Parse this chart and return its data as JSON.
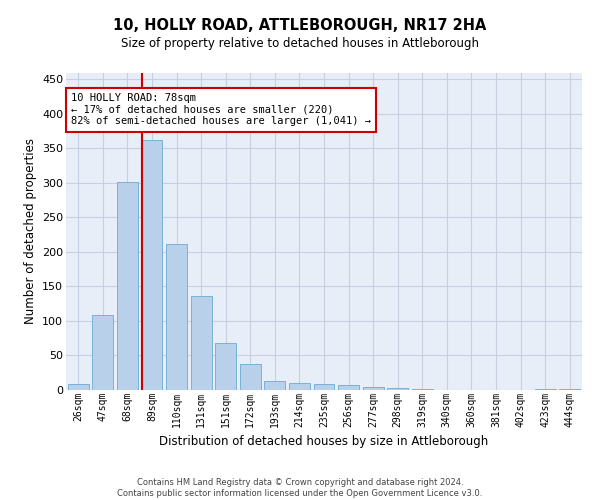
{
  "title1": "10, HOLLY ROAD, ATTLEBOROUGH, NR17 2HA",
  "title2": "Size of property relative to detached houses in Attleborough",
  "xlabel": "Distribution of detached houses by size in Attleborough",
  "ylabel": "Number of detached properties",
  "categories": [
    "26sqm",
    "47sqm",
    "68sqm",
    "89sqm",
    "110sqm",
    "131sqm",
    "151sqm",
    "172sqm",
    "193sqm",
    "214sqm",
    "235sqm",
    "256sqm",
    "277sqm",
    "298sqm",
    "319sqm",
    "340sqm",
    "360sqm",
    "381sqm",
    "402sqm",
    "423sqm",
    "444sqm"
  ],
  "values": [
    8,
    108,
    302,
    362,
    212,
    136,
    68,
    38,
    13,
    10,
    9,
    7,
    5,
    3,
    2,
    0,
    0,
    0,
    0,
    2,
    2
  ],
  "bar_color": "#b8d0ea",
  "bar_edge_color": "#6aaad4",
  "background_color": "#e8eef8",
  "grid_color": "#c8cfe0",
  "vline_color": "#cc0000",
  "vline_x": 2.575,
  "annotation_text": "10 HOLLY ROAD: 78sqm\n← 17% of detached houses are smaller (220)\n82% of semi-detached houses are larger (1,041) →",
  "annotation_box_color": "#ffffff",
  "annotation_box_edge": "#cc0000",
  "ylim": [
    0,
    460
  ],
  "yticks": [
    0,
    50,
    100,
    150,
    200,
    250,
    300,
    350,
    400,
    450
  ],
  "footnote": "Contains HM Land Registry data © Crown copyright and database right 2024.\nContains public sector information licensed under the Open Government Licence v3.0."
}
